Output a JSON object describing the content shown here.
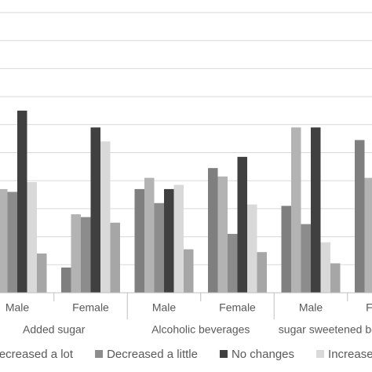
{
  "chart_data": {
    "type": "bar",
    "groups": [
      "Added sugar",
      "Alcoholic beverages",
      "sugar sweetened beverages"
    ],
    "categories": [
      "Male",
      "Female",
      "Male",
      "Female",
      "Male",
      "Female"
    ],
    "series": [
      {
        "color": "#7f7f7f",
        "values": [
          null,
          0.9,
          3.7,
          4.45,
          3.1,
          5.45
        ]
      },
      {
        "name": "Decreased a lot",
        "color": "#b3b3b3",
        "values": [
          3.7,
          2.8,
          4.1,
          4.15,
          5.9,
          4.1
        ]
      },
      {
        "name": "Decreased a little",
        "color": "#8c8c8c",
        "values": [
          3.6,
          2.7,
          3.2,
          2.1,
          2.45,
          null
        ]
      },
      {
        "name": "No changes",
        "color": "#404040",
        "values": [
          6.5,
          5.9,
          3.7,
          4.85,
          5.9,
          null
        ]
      },
      {
        "name": "Increased a little",
        "color": "#d9d9d9",
        "values": [
          3.95,
          5.4,
          3.85,
          3.15,
          1.8,
          null
        ]
      },
      {
        "color": "#a6a6a6",
        "values": [
          1.4,
          2.5,
          1.55,
          1.45,
          1.05,
          null
        ]
      }
    ],
    "ylim": [
      0,
      10
    ],
    "yticks": [
      0,
      1,
      2,
      3,
      4,
      5,
      6,
      7,
      8,
      9,
      10
    ],
    "grid": true
  }
}
